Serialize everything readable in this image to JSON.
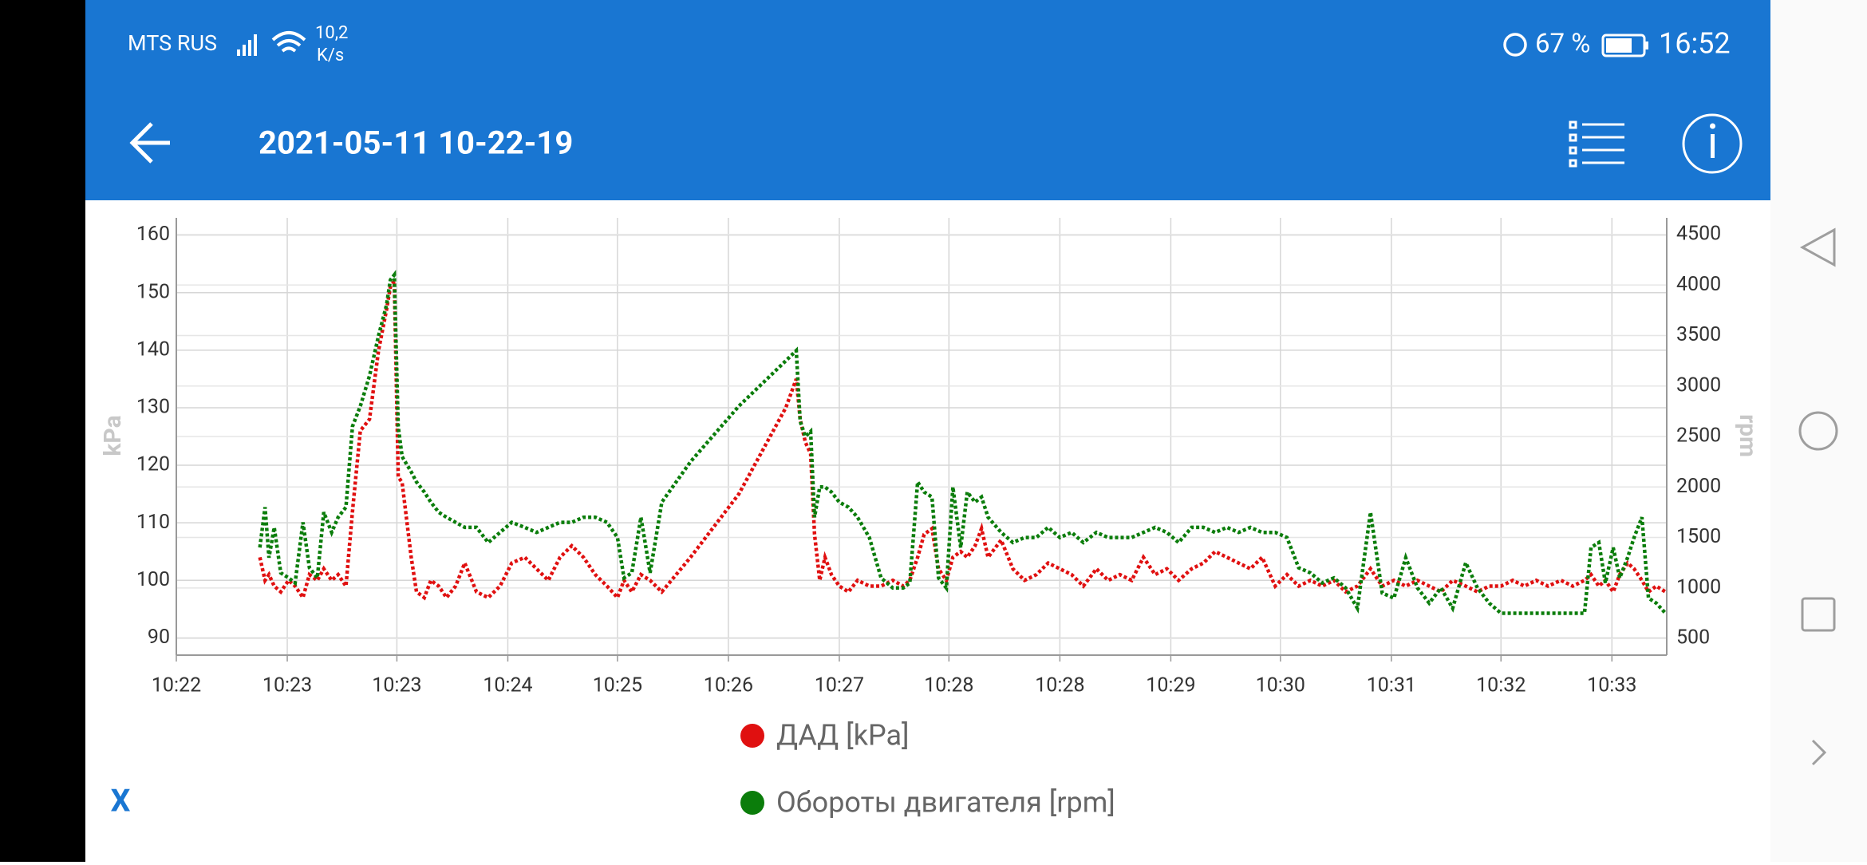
{
  "status_bar": {
    "carrier": "MTS RUS",
    "speed": "10,2",
    "speed_unit": "K/s",
    "battery": "67 %",
    "time": "16:52"
  },
  "app_bar": {
    "title": "2021-05-11 10-22-19"
  },
  "close_button": "X",
  "chart_data": {
    "type": "line",
    "ylabel": "kPa",
    "y2label": "rpm",
    "grid": true,
    "x": [
      22.64,
      22.68,
      22.71,
      22.75,
      22.8,
      22.86,
      22.91,
      22.97,
      23.02,
      23.08,
      23.13,
      23.19,
      23.24,
      23.3,
      23.35,
      23.41,
      23.48,
      23.55,
      23.61,
      23.64,
      23.67,
      23.7,
      23.73,
      23.8,
      23.84,
      23.9,
      23.95,
      24.01,
      24.07,
      24.14,
      24.21,
      24.3,
      24.39,
      24.48,
      24.57,
      24.67,
      24.76,
      24.85,
      24.94,
      25.03,
      25.12,
      25.21,
      25.3,
      25.38,
      25.43,
      25.49,
      25.56,
      25.63,
      25.72,
      25.94,
      26.31,
      26.67,
      26.75,
      26.78,
      26.82,
      26.86,
      26.89,
      26.93,
      26.97,
      27.02,
      27.08,
      27.15,
      27.22,
      27.31,
      27.4,
      27.49,
      27.57,
      27.62,
      27.68,
      27.73,
      27.79,
      27.84,
      27.9,
      27.95,
      28.01,
      28.06,
      28.12,
      28.17,
      28.22,
      28.32,
      28.41,
      28.5,
      28.59,
      28.68,
      28.77,
      28.86,
      28.95,
      29.05,
      29.14,
      29.23,
      29.32,
      29.41,
      29.5,
      29.59,
      29.68,
      29.78,
      29.87,
      29.96,
      30.05,
      30.14,
      30.23,
      30.32,
      30.42,
      30.51,
      30.6,
      30.69,
      30.78,
      30.87,
      30.96,
      31.05,
      31.15,
      31.24,
      31.33,
      31.42,
      31.51,
      31.6,
      31.69,
      31.78,
      31.88,
      31.97,
      32.06,
      32.15,
      32.24,
      32.33,
      32.42,
      32.51,
      32.61,
      32.7,
      32.79,
      32.84,
      32.9,
      32.95,
      33.01,
      33.06,
      33.12,
      33.17,
      33.23,
      33.28,
      33.34,
      33.41
    ],
    "series": [
      {
        "name": "ДАД [kPa]",
        "color": "#e01010",
        "axis": "y",
        "values": [
          104,
          100,
          101,
          99,
          98,
          100,
          99,
          97,
          101,
          100,
          102,
          100,
          101,
          99,
          112,
          126,
          128,
          140,
          147,
          151,
          152,
          118,
          117,
          104,
          98,
          97,
          100,
          99,
          97,
          99,
          103,
          98,
          97,
          99,
          103,
          104,
          102,
          100,
          104,
          106,
          104,
          101,
          99,
          97,
          100,
          98,
          101,
          100,
          98,
          104,
          115,
          130,
          135,
          128,
          124,
          122,
          108,
          100,
          104,
          101,
          99,
          98,
          100,
          99,
          99,
          100,
          99,
          100,
          104,
          108,
          109,
          102,
          100,
          104,
          105,
          104,
          106,
          109,
          104,
          107,
          102,
          100,
          101,
          103,
          102,
          101,
          99,
          102,
          100,
          101,
          100,
          104,
          101,
          102,
          100,
          102,
          103,
          105,
          104,
          103,
          102,
          104,
          99,
          101,
          99,
          100,
          99,
          100,
          98,
          99,
          102,
          99,
          100,
          99,
          100,
          99,
          98,
          100,
          99,
          98,
          99,
          99,
          100,
          99,
          100,
          99,
          100,
          99,
          100,
          101,
          99,
          100,
          98,
          101,
          103,
          102,
          100,
          98,
          99,
          98
        ]
      },
      {
        "name": "Обороты двигателя [rpm]",
        "color": "#0b7d0b",
        "axis": "y2",
        "values": [
          1400,
          1800,
          1300,
          1600,
          1150,
          1100,
          1050,
          1650,
          1200,
          1100,
          1750,
          1550,
          1700,
          1800,
          2600,
          2800,
          3100,
          3500,
          3800,
          4050,
          4100,
          2600,
          2300,
          2150,
          2050,
          1950,
          1850,
          1750,
          1700,
          1650,
          1600,
          1600,
          1450,
          1550,
          1650,
          1600,
          1550,
          1600,
          1650,
          1650,
          1700,
          1700,
          1650,
          1500,
          1100,
          1150,
          1700,
          1150,
          1850,
          2250,
          2800,
          3250,
          3350,
          2650,
          2500,
          2550,
          1700,
          2000,
          2000,
          1950,
          1850,
          1800,
          1700,
          1500,
          1100,
          1000,
          1000,
          1050,
          2050,
          1950,
          1900,
          1100,
          1000,
          2000,
          1400,
          1950,
          1850,
          1900,
          1700,
          1550,
          1450,
          1500,
          1500,
          1600,
          1500,
          1550,
          1450,
          1550,
          1500,
          1500,
          1500,
          1550,
          1600,
          1550,
          1450,
          1600,
          1600,
          1550,
          1600,
          1550,
          1600,
          1550,
          1550,
          1500,
          1200,
          1150,
          1050,
          1100,
          1000,
          800,
          1750,
          950,
          900,
          1300,
          1000,
          850,
          1000,
          800,
          1250,
          1000,
          850,
          750,
          750,
          750,
          750,
          750,
          750,
          750,
          750,
          1400,
          1450,
          1050,
          1400,
          1100,
          1300,
          1500,
          1700,
          900,
          850,
          750
        ]
      }
    ],
    "xlim": [
      22,
      33.42
    ],
    "xticks": [
      {
        "value": 22,
        "label": "10:22"
      },
      {
        "value": 22.85,
        "label": "10:23"
      },
      {
        "value": 23.69,
        "label": "10:23"
      },
      {
        "value": 24.54,
        "label": "10:24"
      },
      {
        "value": 25.38,
        "label": "10:25"
      },
      {
        "value": 26.23,
        "label": "10:26"
      },
      {
        "value": 27.08,
        "label": "10:27"
      },
      {
        "value": 27.92,
        "label": "10:28"
      },
      {
        "value": 28.77,
        "label": "10:28"
      },
      {
        "value": 29.62,
        "label": "10:29"
      },
      {
        "value": 30.46,
        "label": "10:30"
      },
      {
        "value": 31.31,
        "label": "10:31"
      },
      {
        "value": 32.15,
        "label": "10:32"
      },
      {
        "value": 33,
        "label": "10:33"
      }
    ],
    "ylim": [
      87,
      163
    ],
    "yticks": [
      90,
      100,
      110,
      120,
      130,
      140,
      150,
      160
    ],
    "y2lim": [
      335,
      4665
    ],
    "y2ticks": [
      500,
      1000,
      1500,
      2000,
      2500,
      3000,
      3500,
      4000,
      4500
    ]
  }
}
